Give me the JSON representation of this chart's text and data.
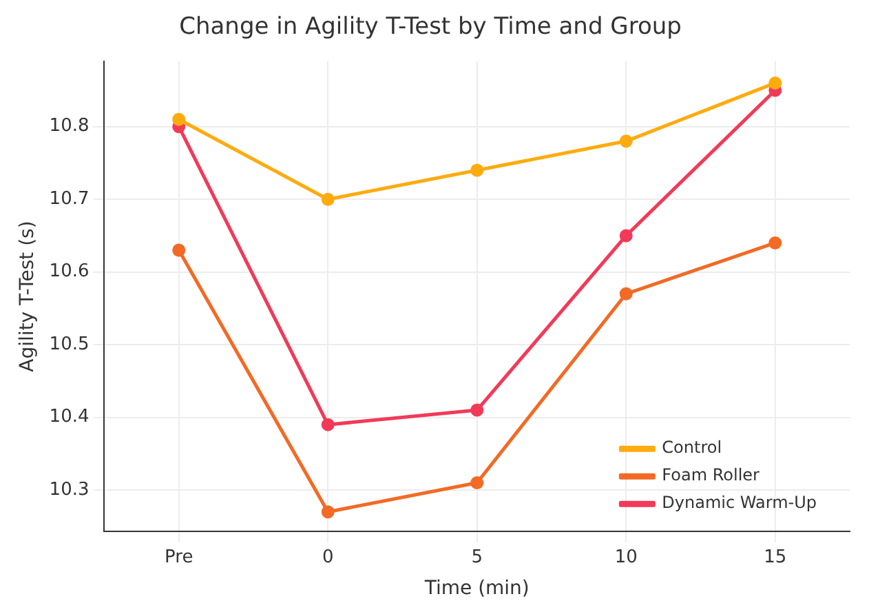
{
  "chart_data": {
    "type": "line",
    "title": "Change in Agility T-Test by Time and Group",
    "xlabel": "Time (min)",
    "ylabel": "Agility T-Test (s)",
    "categories": [
      "Pre",
      "0",
      "5",
      "10",
      "15"
    ],
    "series": [
      {
        "name": "Control",
        "color": "#ffab0f",
        "values": [
          10.81,
          10.7,
          10.74,
          10.78,
          10.86
        ]
      },
      {
        "name": "Foam Roller",
        "color": "#f26a25",
        "values": [
          10.63,
          10.27,
          10.31,
          10.57,
          10.64
        ]
      },
      {
        "name": "Dynamic Warm-Up",
        "color": "#f23a58",
        "values": [
          10.8,
          10.39,
          10.41,
          10.65,
          10.85
        ]
      }
    ],
    "ylim": [
      10.243,
      10.89
    ],
    "yticks": [
      10.3,
      10.4,
      10.5,
      10.6,
      10.7,
      10.8
    ],
    "grid": true,
    "legend": "bottom right",
    "marker": "circle",
    "line_style": "solid"
  }
}
